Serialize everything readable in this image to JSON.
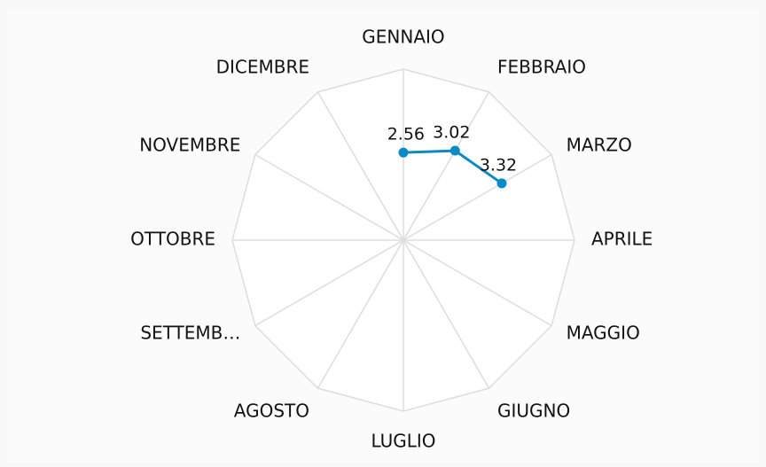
{
  "chart_data": {
    "type": "radar",
    "categories": [
      "GENNAIO",
      "FEBBRAIO",
      "MARZO",
      "APRILE",
      "MAGGIO",
      "GIUGNO",
      "LUGLIO",
      "AGOSTO",
      "SETTEMB…",
      "OTTOBRE",
      "NOVEMBRE",
      "DICEMBRE"
    ],
    "values": [
      2.56,
      3.02,
      3.32,
      null,
      null,
      null,
      null,
      null,
      null,
      null,
      null,
      null
    ],
    "color": "#0a8ac6",
    "rlim": [
      0,
      5
    ],
    "grid": true
  }
}
